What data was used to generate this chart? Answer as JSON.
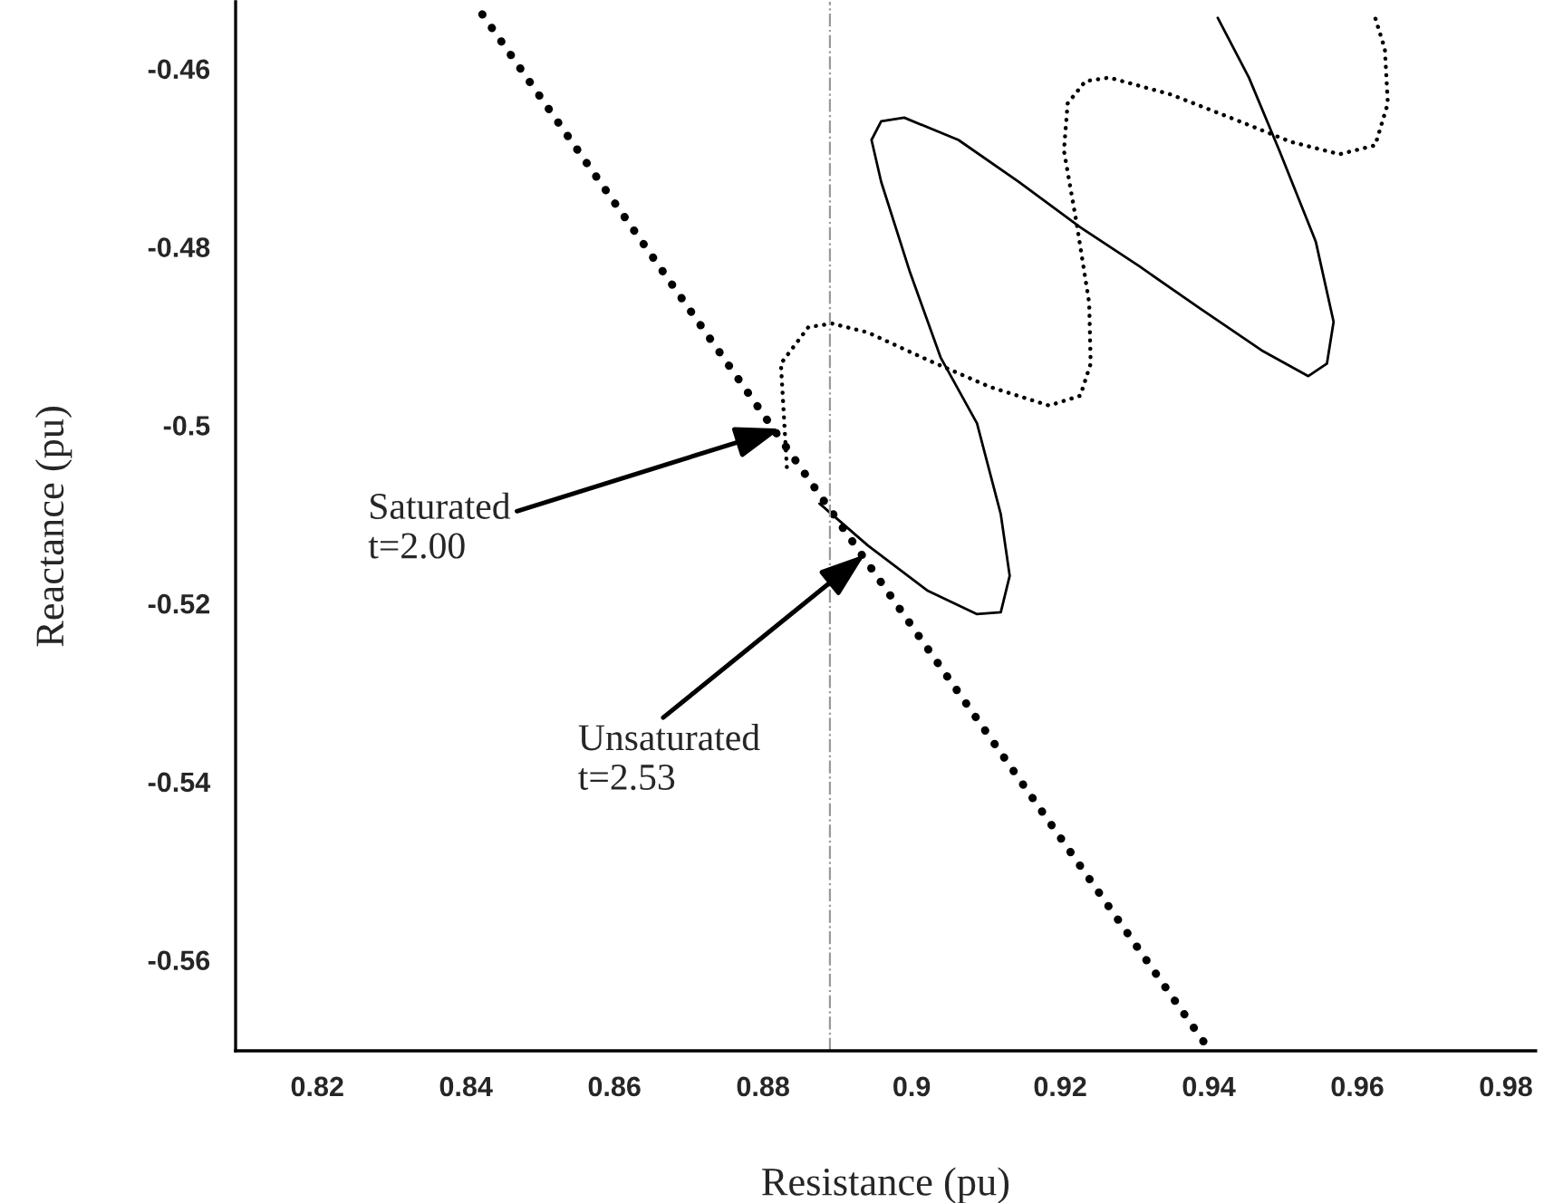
{
  "chart_data": {
    "type": "line",
    "xlabel": "Resistance (pu)",
    "ylabel": "Reactance (pu)",
    "xlim": [
      0.809,
      0.984
    ],
    "ylim": [
      -0.5702,
      -0.4525
    ],
    "xticks": [
      0.82,
      0.84,
      0.86,
      0.88,
      {
        "value": 0.9,
        "label": "0.9"
      },
      0.92,
      0.94,
      0.96,
      0.98
    ],
    "yticks": [
      -0.56,
      -0.54,
      -0.52,
      {
        "value": -0.5,
        "label": "-0.5"
      },
      -0.48,
      -0.46
    ],
    "grid": false,
    "legend": false,
    "marker": "none",
    "series": [
      {
        "color": "#000000",
        "line_style": "dotted",
        "x": [
          0.8422,
          0.94
        ],
        "values": [
          -0.4539,
          -0.57
        ]
      },
      {
        "color": "#000000",
        "line_style": "dotted",
        "x": [
          0.8832,
          0.8824,
          0.8861,
          0.8893,
          0.8941,
          0.9022,
          0.9105,
          0.9185,
          0.9227,
          0.9241,
          0.9239,
          0.9222,
          0.9205,
          0.921,
          0.9234,
          0.9266,
          0.9349,
          0.9429,
          0.951,
          0.9576,
          0.9624,
          0.9641,
          0.9637,
          0.9624
        ],
        "values": [
          -0.5047,
          -0.4931,
          -0.489,
          -0.4886,
          -0.4896,
          -0.4927,
          -0.4957,
          -0.4978,
          -0.4967,
          -0.4931,
          -0.4863,
          -0.4773,
          -0.4692,
          -0.4639,
          -0.4614,
          -0.461,
          -0.4629,
          -0.4655,
          -0.4682,
          -0.4696,
          -0.4686,
          -0.4639,
          -0.4578,
          -0.4543
        ]
      },
      {
        "color": "#000000",
        "line_style": "solid",
        "x": [
          0.8876,
          0.8941,
          0.9022,
          0.9088,
          0.912,
          0.9132,
          0.912,
          0.9088,
          0.9039,
          0.8998,
          0.8959,
          0.8946,
          0.8959,
          0.899,
          0.9063,
          0.9144,
          0.9227,
          0.9307,
          0.9388,
          0.9471,
          0.9534,
          0.9559,
          0.9568,
          0.9544,
          0.9495,
          0.9454,
          0.9412
        ],
        "values": [
          -0.5088,
          -0.5135,
          -0.5186,
          -0.5212,
          -0.521,
          -0.5169,
          -0.51,
          -0.4998,
          -0.4924,
          -0.4829,
          -0.4727,
          -0.468,
          -0.4659,
          -0.4655,
          -0.468,
          -0.4727,
          -0.4778,
          -0.4822,
          -0.4869,
          -0.4916,
          -0.4945,
          -0.4931,
          -0.4884,
          -0.4794,
          -0.4692,
          -0.461,
          -0.4543
        ]
      }
    ],
    "ref_lines": [
      {
        "axis": "x",
        "value": 0.889,
        "color": "#999999",
        "line_style": "dashdot"
      }
    ],
    "annotations": [
      {
        "text": "Saturated\nt=2.00",
        "x": 0.8824,
        "y": -0.5004
      },
      {
        "text": "Unsaturated\nt=2.53",
        "x": 0.8937,
        "y": -0.5145
      }
    ]
  }
}
